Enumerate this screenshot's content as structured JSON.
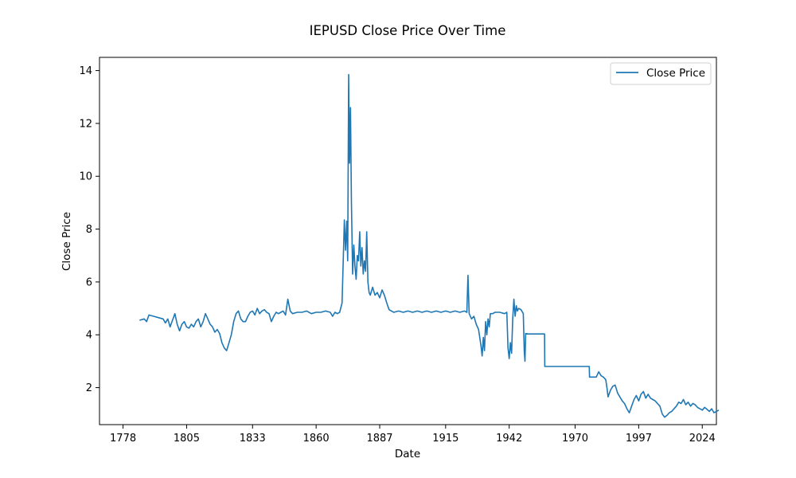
{
  "chart_data": {
    "type": "line",
    "title": "IEPUSD Close Price Over Time",
    "xlabel": "Date",
    "ylabel": "Close Price",
    "xlim": [
      1768,
      2030
    ],
    "ylim": [
      0.6,
      14.5
    ],
    "x_ticks": [
      1778,
      1805,
      1833,
      1860,
      1887,
      1915,
      1942,
      1970,
      1997,
      2024
    ],
    "y_ticks": [
      2,
      4,
      6,
      8,
      10,
      12,
      14
    ],
    "grid": false,
    "legend": {
      "position": "top-right",
      "entries": [
        "Close Price"
      ]
    },
    "series": [
      {
        "name": "Close Price",
        "color": "#1f77b4",
        "points": [
          [
            1785,
            4.55
          ],
          [
            1787,
            4.6
          ],
          [
            1788,
            4.5
          ],
          [
            1789,
            4.75
          ],
          [
            1791,
            4.7
          ],
          [
            1793,
            4.65
          ],
          [
            1795,
            4.6
          ],
          [
            1796,
            4.45
          ],
          [
            1797,
            4.6
          ],
          [
            1798,
            4.3
          ],
          [
            1799,
            4.55
          ],
          [
            1800,
            4.8
          ],
          [
            1801,
            4.4
          ],
          [
            1802,
            4.15
          ],
          [
            1803,
            4.4
          ],
          [
            1804,
            4.5
          ],
          [
            1805,
            4.3
          ],
          [
            1806,
            4.25
          ],
          [
            1807,
            4.4
          ],
          [
            1808,
            4.3
          ],
          [
            1809,
            4.5
          ],
          [
            1810,
            4.6
          ],
          [
            1811,
            4.3
          ],
          [
            1812,
            4.5
          ],
          [
            1813,
            4.8
          ],
          [
            1814,
            4.6
          ],
          [
            1815,
            4.4
          ],
          [
            1816,
            4.3
          ],
          [
            1817,
            4.1
          ],
          [
            1818,
            4.2
          ],
          [
            1819,
            4.05
          ],
          [
            1820,
            3.7
          ],
          [
            1821,
            3.5
          ],
          [
            1822,
            3.4
          ],
          [
            1823,
            3.7
          ],
          [
            1824,
            4.0
          ],
          [
            1825,
            4.5
          ],
          [
            1826,
            4.8
          ],
          [
            1827,
            4.9
          ],
          [
            1828,
            4.6
          ],
          [
            1829,
            4.5
          ],
          [
            1830,
            4.5
          ],
          [
            1831,
            4.7
          ],
          [
            1832,
            4.85
          ],
          [
            1833,
            4.9
          ],
          [
            1834,
            4.75
          ],
          [
            1835,
            5.0
          ],
          [
            1836,
            4.8
          ],
          [
            1837,
            4.9
          ],
          [
            1838,
            4.95
          ],
          [
            1839,
            4.85
          ],
          [
            1840,
            4.8
          ],
          [
            1841,
            4.5
          ],
          [
            1842,
            4.7
          ],
          [
            1843,
            4.85
          ],
          [
            1844,
            4.8
          ],
          [
            1845,
            4.85
          ],
          [
            1846,
            4.9
          ],
          [
            1847,
            4.75
          ],
          [
            1848,
            5.35
          ],
          [
            1849,
            4.9
          ],
          [
            1850,
            4.8
          ],
          [
            1852,
            4.85
          ],
          [
            1854,
            4.85
          ],
          [
            1856,
            4.9
          ],
          [
            1858,
            4.8
          ],
          [
            1860,
            4.85
          ],
          [
            1862,
            4.85
          ],
          [
            1864,
            4.9
          ],
          [
            1866,
            4.85
          ],
          [
            1867,
            4.7
          ],
          [
            1868,
            4.85
          ],
          [
            1869,
            4.8
          ],
          [
            1870,
            4.85
          ],
          [
            1871,
            5.2
          ],
          [
            1871.5,
            6.8
          ],
          [
            1872,
            8.35
          ],
          [
            1872.5,
            7.2
          ],
          [
            1873,
            8.3
          ],
          [
            1873.4,
            6.8
          ],
          [
            1873.8,
            13.85
          ],
          [
            1874.2,
            10.5
          ],
          [
            1874.6,
            12.6
          ],
          [
            1875,
            9.0
          ],
          [
            1875.5,
            6.3
          ],
          [
            1876,
            7.4
          ],
          [
            1876.5,
            6.6
          ],
          [
            1877,
            6.1
          ],
          [
            1877.5,
            7.0
          ],
          [
            1878,
            6.8
          ],
          [
            1878.5,
            7.9
          ],
          [
            1879,
            6.6
          ],
          [
            1879.5,
            7.3
          ],
          [
            1880,
            6.3
          ],
          [
            1880.5,
            6.8
          ],
          [
            1881,
            6.4
          ],
          [
            1881.5,
            7.9
          ],
          [
            1882,
            6.0
          ],
          [
            1882.5,
            5.6
          ],
          [
            1883,
            5.5
          ],
          [
            1884,
            5.8
          ],
          [
            1885,
            5.5
          ],
          [
            1886,
            5.6
          ],
          [
            1887,
            5.4
          ],
          [
            1888,
            5.7
          ],
          [
            1889,
            5.5
          ],
          [
            1890,
            5.2
          ],
          [
            1891,
            4.95
          ],
          [
            1892,
            4.9
          ],
          [
            1893,
            4.85
          ],
          [
            1895,
            4.9
          ],
          [
            1897,
            4.85
          ],
          [
            1899,
            4.9
          ],
          [
            1901,
            4.85
          ],
          [
            1903,
            4.9
          ],
          [
            1905,
            4.85
          ],
          [
            1907,
            4.9
          ],
          [
            1909,
            4.85
          ],
          [
            1911,
            4.9
          ],
          [
            1913,
            4.85
          ],
          [
            1915,
            4.9
          ],
          [
            1917,
            4.85
          ],
          [
            1919,
            4.9
          ],
          [
            1921,
            4.85
          ],
          [
            1923,
            4.9
          ],
          [
            1924,
            4.85
          ],
          [
            1924.5,
            6.25
          ],
          [
            1925,
            4.8
          ],
          [
            1926,
            4.6
          ],
          [
            1927,
            4.7
          ],
          [
            1928,
            4.4
          ],
          [
            1929,
            4.2
          ],
          [
            1930,
            3.6
          ],
          [
            1930.5,
            3.2
          ],
          [
            1931,
            3.9
          ],
          [
            1931.5,
            3.4
          ],
          [
            1932,
            4.5
          ],
          [
            1932.5,
            4.0
          ],
          [
            1933,
            4.6
          ],
          [
            1933.5,
            4.3
          ],
          [
            1934,
            4.8
          ],
          [
            1935,
            4.8
          ],
          [
            1936,
            4.85
          ],
          [
            1938,
            4.85
          ],
          [
            1940,
            4.8
          ],
          [
            1941,
            4.85
          ],
          [
            1941.5,
            3.5
          ],
          [
            1942,
            3.1
          ],
          [
            1942.5,
            3.7
          ],
          [
            1943,
            3.3
          ],
          [
            1943.5,
            4.6
          ],
          [
            1944,
            5.35
          ],
          [
            1944.5,
            4.7
          ],
          [
            1945,
            5.1
          ],
          [
            1945.5,
            4.9
          ],
          [
            1946,
            5.0
          ],
          [
            1947,
            4.95
          ],
          [
            1948,
            4.8
          ],
          [
            1948.4,
            3.4
          ],
          [
            1948.7,
            3.0
          ],
          [
            1949,
            4.05
          ],
          [
            1950,
            4.03
          ],
          [
            1952,
            4.03
          ],
          [
            1954,
            4.03
          ],
          [
            1956,
            4.03
          ],
          [
            1957,
            4.03
          ],
          [
            1957.1,
            2.8
          ],
          [
            1959,
            2.8
          ],
          [
            1962,
            2.8
          ],
          [
            1965,
            2.8
          ],
          [
            1968,
            2.8
          ],
          [
            1971,
            2.8
          ],
          [
            1974,
            2.8
          ],
          [
            1976,
            2.8
          ],
          [
            1976.1,
            2.4
          ],
          [
            1978,
            2.4
          ],
          [
            1979,
            2.4
          ],
          [
            1980,
            2.6
          ],
          [
            1981,
            2.45
          ],
          [
            1982,
            2.4
          ],
          [
            1983,
            2.3
          ],
          [
            1983.5,
            2.0
          ],
          [
            1984,
            1.65
          ],
          [
            1985,
            1.9
          ],
          [
            1986,
            2.05
          ],
          [
            1987,
            2.1
          ],
          [
            1988,
            1.8
          ],
          [
            1989,
            1.65
          ],
          [
            1990,
            1.5
          ],
          [
            1991,
            1.4
          ],
          [
            1992,
            1.2
          ],
          [
            1993,
            1.05
          ],
          [
            1994,
            1.3
          ],
          [
            1995,
            1.55
          ],
          [
            1996,
            1.7
          ],
          [
            1997,
            1.5
          ],
          [
            1998,
            1.75
          ],
          [
            1999,
            1.85
          ],
          [
            2000,
            1.6
          ],
          [
            2001,
            1.75
          ],
          [
            2002,
            1.6
          ],
          [
            2003,
            1.55
          ],
          [
            2004,
            1.5
          ],
          [
            2005,
            1.4
          ],
          [
            2006,
            1.3
          ],
          [
            2007,
            1.0
          ],
          [
            2008,
            0.88
          ],
          [
            2009,
            0.95
          ],
          [
            2010,
            1.05
          ],
          [
            2011,
            1.1
          ],
          [
            2012,
            1.2
          ],
          [
            2013,
            1.3
          ],
          [
            2014,
            1.45
          ],
          [
            2015,
            1.4
          ],
          [
            2016,
            1.55
          ],
          [
            2017,
            1.35
          ],
          [
            2018,
            1.45
          ],
          [
            2019,
            1.3
          ],
          [
            2020,
            1.4
          ],
          [
            2021,
            1.35
          ],
          [
            2022,
            1.25
          ],
          [
            2023,
            1.2
          ],
          [
            2024,
            1.15
          ],
          [
            2025,
            1.25
          ],
          [
            2026,
            1.18
          ],
          [
            2027,
            1.1
          ],
          [
            2028,
            1.2
          ],
          [
            2029,
            1.05
          ],
          [
            2030,
            1.1
          ],
          [
            2031,
            1.15
          ]
        ]
      }
    ]
  }
}
